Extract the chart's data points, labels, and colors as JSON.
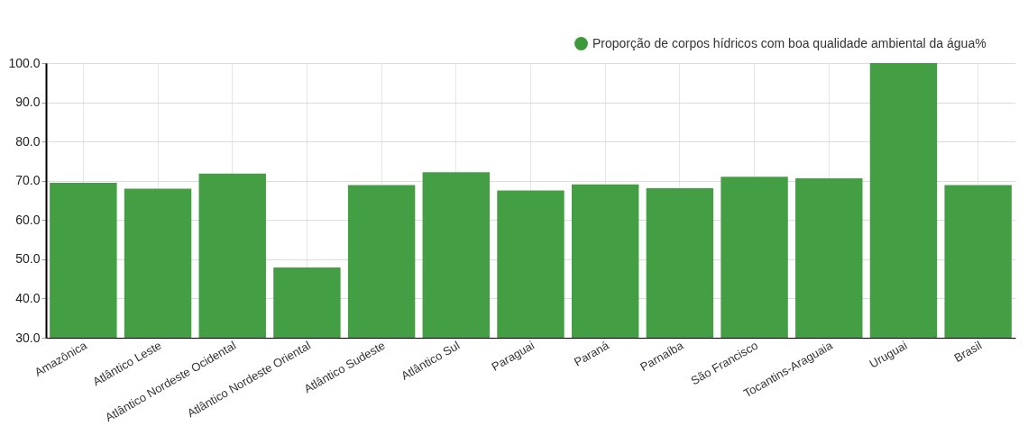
{
  "chart_data": {
    "type": "bar",
    "categories": [
      "Amazônica",
      "Atlântico Leste",
      "Atlântico Nordeste Ocidental",
      "Atlântico Nordeste Oriental",
      "Atlântico Sudeste",
      "Atlântico Sul",
      "Paraguai",
      "Paraná",
      "Parnaíba",
      "São Francisco",
      "Tocantins-Araguaia",
      "Uruguai",
      "Brasil"
    ],
    "series": [
      {
        "name": "Proporção de corpos hídricos com boa qualidade ambiental da água%",
        "color": "#3a9a3a",
        "values": [
          69.5,
          68.0,
          71.8,
          47.9,
          68.9,
          72.2,
          67.5,
          69.1,
          68.1,
          71.0,
          70.6,
          100.0,
          68.9
        ]
      }
    ],
    "ylim": [
      30,
      100
    ],
    "yticks": [
      {
        "value": 30,
        "label": "30.0"
      },
      {
        "value": 40,
        "label": "40.0"
      },
      {
        "value": 50,
        "label": "50.0"
      },
      {
        "value": 60,
        "label": "60.0"
      },
      {
        "value": 70,
        "label": "70.0"
      },
      {
        "value": 80,
        "label": "80.0"
      },
      {
        "value": 90,
        "label": "90.0"
      },
      {
        "value": 100,
        "label": "100.0"
      }
    ],
    "grid": true,
    "legend": "top right"
  }
}
